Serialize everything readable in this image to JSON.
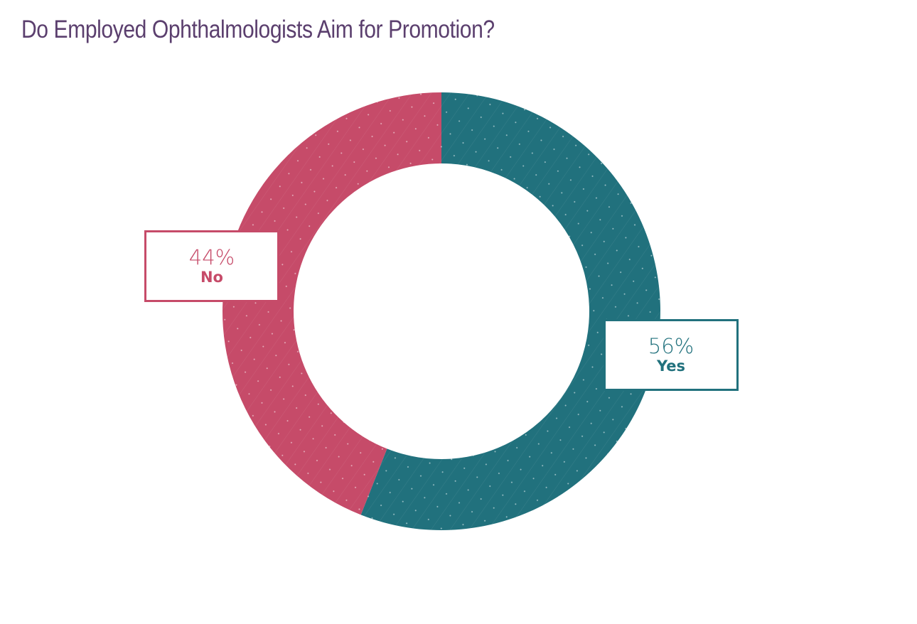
{
  "title": "Do Employed Ophthalmologists Aim for Promotion?",
  "colors": {
    "title": "#5B3F6E",
    "yes": "#21717D",
    "no": "#C64B69"
  },
  "chart_data": {
    "type": "pie",
    "subtype": "donut",
    "title": "Do Employed Ophthalmologists Aim for Promotion?",
    "categories": [
      "Yes",
      "No"
    ],
    "values": [
      56,
      44
    ],
    "unit": "%",
    "colors": [
      "#21717D",
      "#C64B69"
    ],
    "labels": [
      {
        "category": "Yes",
        "text": "56%",
        "position": "right"
      },
      {
        "category": "No",
        "text": "44%",
        "position": "left"
      }
    ],
    "start_angle": "12 o'clock",
    "direction": "clockwise",
    "legend": "none"
  },
  "labels": {
    "no": {
      "pct": "44%",
      "name": "No"
    },
    "yes": {
      "pct": "56%",
      "name": "Yes"
    }
  }
}
